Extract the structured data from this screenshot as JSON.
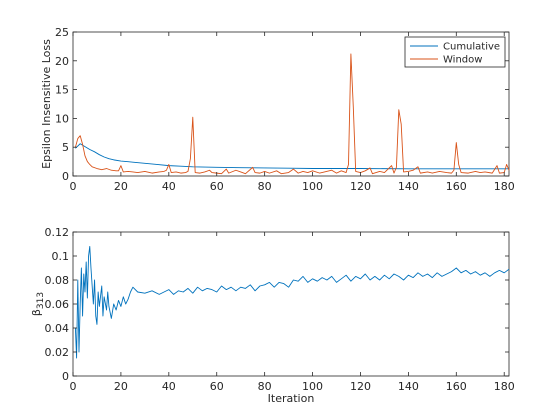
{
  "chart_data": [
    {
      "type": "line",
      "title": "",
      "xlabel": "",
      "ylabel": "Epsilon Insensitive Loss",
      "xlim": [
        0,
        182
      ],
      "ylim": [
        0,
        25
      ],
      "xticks": [
        0,
        20,
        40,
        60,
        80,
        100,
        120,
        140,
        160,
        180
      ],
      "yticks": [
        0,
        5,
        10,
        15,
        20,
        25
      ],
      "grid": false,
      "legend": "top-right",
      "series": [
        {
          "name": "Cumulative",
          "color": "#0072BD",
          "points": [
            [
              1,
              4.8
            ],
            [
              3,
              5.6
            ],
            [
              5,
              5.1
            ],
            [
              7,
              4.6
            ],
            [
              9,
              4.2
            ],
            [
              11,
              3.7
            ],
            [
              13,
              3.3
            ],
            [
              15,
              3.0
            ],
            [
              17,
              2.8
            ],
            [
              20,
              2.6
            ],
            [
              25,
              2.4
            ],
            [
              30,
              2.2
            ],
            [
              35,
              2.0
            ],
            [
              40,
              1.8
            ],
            [
              45,
              1.7
            ],
            [
              50,
              1.6
            ],
            [
              55,
              1.55
            ],
            [
              60,
              1.5
            ],
            [
              70,
              1.45
            ],
            [
              80,
              1.4
            ],
            [
              90,
              1.35
            ],
            [
              100,
              1.3
            ],
            [
              120,
              1.3
            ],
            [
              140,
              1.25
            ],
            [
              160,
              1.25
            ],
            [
              182,
              1.25
            ]
          ]
        },
        {
          "name": "Window",
          "color": "#D95319",
          "points": [
            [
              1,
              5.0
            ],
            [
              2,
              6.5
            ],
            [
              3,
              7.0
            ],
            [
              4,
              5.5
            ],
            [
              5,
              3.5
            ],
            [
              6,
              2.5
            ],
            [
              7,
              2.0
            ],
            [
              8,
              1.6
            ],
            [
              10,
              1.3
            ],
            [
              12,
              1.1
            ],
            [
              14,
              1.3
            ],
            [
              16,
              1.0
            ],
            [
              18,
              0.9
            ],
            [
              19,
              0.9
            ],
            [
              20,
              1.8
            ],
            [
              21,
              0.7
            ],
            [
              23,
              0.8
            ],
            [
              25,
              0.7
            ],
            [
              27,
              0.6
            ],
            [
              30,
              0.8
            ],
            [
              33,
              0.5
            ],
            [
              36,
              0.7
            ],
            [
              38,
              0.8
            ],
            [
              39,
              1.0
            ],
            [
              40,
              2.0
            ],
            [
              41,
              0.6
            ],
            [
              43,
              0.7
            ],
            [
              45,
              0.5
            ],
            [
              47,
              0.6
            ],
            [
              48,
              0.8
            ],
            [
              49,
              3.0
            ],
            [
              50,
              10.2
            ],
            [
              51,
              0.6
            ],
            [
              53,
              0.5
            ],
            [
              55,
              0.7
            ],
            [
              57,
              1.0
            ],
            [
              58,
              0.6
            ],
            [
              60,
              0.5
            ],
            [
              62,
              0.4
            ],
            [
              64,
              1.2
            ],
            [
              65,
              0.5
            ],
            [
              68,
              1.0
            ],
            [
              70,
              0.7
            ],
            [
              72,
              0.4
            ],
            [
              75,
              1.5
            ],
            [
              76,
              0.6
            ],
            [
              78,
              0.5
            ],
            [
              80,
              0.8
            ],
            [
              82,
              0.5
            ],
            [
              85,
              0.9
            ],
            [
              87,
              0.4
            ],
            [
              90,
              0.6
            ],
            [
              92,
              1.2
            ],
            [
              94,
              0.5
            ],
            [
              96,
              0.8
            ],
            [
              98,
              0.6
            ],
            [
              100,
              0.9
            ],
            [
              103,
              0.5
            ],
            [
              105,
              0.7
            ],
            [
              108,
              1.0
            ],
            [
              110,
              0.5
            ],
            [
              112,
              0.9
            ],
            [
              114,
              0.6
            ],
            [
              115,
              2.0
            ],
            [
              116,
              21.2
            ],
            [
              117,
              12.0
            ],
            [
              118,
              0.8
            ],
            [
              120,
              0.6
            ],
            [
              122,
              0.9
            ],
            [
              124,
              1.4
            ],
            [
              125,
              0.4
            ],
            [
              128,
              0.8
            ],
            [
              130,
              0.6
            ],
            [
              133,
              1.8
            ],
            [
              134,
              0.5
            ],
            [
              135,
              1.5
            ],
            [
              136,
              11.5
            ],
            [
              137,
              9.0
            ],
            [
              138,
              0.7
            ],
            [
              140,
              0.8
            ],
            [
              142,
              1.0
            ],
            [
              144,
              1.6
            ],
            [
              145,
              0.5
            ],
            [
              148,
              0.7
            ],
            [
              150,
              0.5
            ],
            [
              153,
              0.8
            ],
            [
              156,
              0.6
            ],
            [
              158,
              0.5
            ],
            [
              159,
              1.0
            ],
            [
              160,
              5.8
            ],
            [
              161,
              2.0
            ],
            [
              162,
              0.6
            ],
            [
              165,
              0.5
            ],
            [
              168,
              0.8
            ],
            [
              170,
              0.6
            ],
            [
              172,
              0.7
            ],
            [
              175,
              0.5
            ],
            [
              177,
              1.8
            ],
            [
              178,
              0.5
            ],
            [
              180,
              0.6
            ],
            [
              181,
              2.0
            ],
            [
              182,
              1.0
            ]
          ]
        }
      ]
    },
    {
      "type": "line",
      "title": "",
      "xlabel": "Iteration",
      "ylabel": "β313",
      "ylabel_symbol": "β",
      "ylabel_subscript": "313",
      "xlim": [
        0,
        182
      ],
      "ylim": [
        0,
        0.12
      ],
      "xticks": [
        0,
        20,
        40,
        60,
        80,
        100,
        120,
        140,
        160,
        180
      ],
      "yticks": [
        0,
        0.02,
        0.04,
        0.06,
        0.08,
        0.1,
        0.12
      ],
      "ytick_labels": [
        "0",
        "0.02",
        "0.04",
        "0.06",
        "0.08",
        "0.1",
        "0.12"
      ],
      "grid": false,
      "series": [
        {
          "name": "",
          "color": "#0072BD",
          "points": [
            [
              1,
              0.04
            ],
            [
              1.5,
              0.015
            ],
            [
              2,
              0.08
            ],
            [
              2.5,
              0.02
            ],
            [
              3,
              0.06
            ],
            [
              3.5,
              0.09
            ],
            [
              4,
              0.05
            ],
            [
              4.5,
              0.085
            ],
            [
              5,
              0.07
            ],
            [
              5.5,
              0.095
            ],
            [
              6,
              0.065
            ],
            [
              6.5,
              0.1
            ],
            [
              7,
              0.108
            ],
            [
              7.5,
              0.09
            ],
            [
              8,
              0.075
            ],
            [
              8.5,
              0.06
            ],
            [
              9,
              0.08
            ],
            [
              9.5,
              0.05
            ],
            [
              10,
              0.043
            ],
            [
              10.5,
              0.07
            ],
            [
              11,
              0.058
            ],
            [
              12,
              0.075
            ],
            [
              12.5,
              0.05
            ],
            [
              13,
              0.066
            ],
            [
              14,
              0.055
            ],
            [
              14.5,
              0.07
            ],
            [
              15,
              0.058
            ],
            [
              16,
              0.048
            ],
            [
              17,
              0.06
            ],
            [
              18,
              0.055
            ],
            [
              19,
              0.063
            ],
            [
              20,
              0.058
            ],
            [
              21,
              0.066
            ],
            [
              22,
              0.06
            ],
            [
              23,
              0.064
            ],
            [
              24,
              0.07
            ],
            [
              25,
              0.074
            ],
            [
              27,
              0.07
            ],
            [
              30,
              0.069
            ],
            [
              33,
              0.071
            ],
            [
              36,
              0.068
            ],
            [
              38,
              0.07
            ],
            [
              40,
              0.072
            ],
            [
              42,
              0.068
            ],
            [
              44,
              0.071
            ],
            [
              46,
              0.07
            ],
            [
              48,
              0.073
            ],
            [
              50,
              0.069
            ],
            [
              52,
              0.074
            ],
            [
              54,
              0.071
            ],
            [
              56,
              0.073
            ],
            [
              58,
              0.072
            ],
            [
              60,
              0.07
            ],
            [
              62,
              0.075
            ],
            [
              64,
              0.072
            ],
            [
              66,
              0.074
            ],
            [
              68,
              0.071
            ],
            [
              70,
              0.074
            ],
            [
              72,
              0.073
            ],
            [
              74,
              0.076
            ],
            [
              76,
              0.071
            ],
            [
              78,
              0.075
            ],
            [
              80,
              0.076
            ],
            [
              82,
              0.078
            ],
            [
              84,
              0.074
            ],
            [
              86,
              0.078
            ],
            [
              88,
              0.077
            ],
            [
              90,
              0.074
            ],
            [
              92,
              0.08
            ],
            [
              94,
              0.079
            ],
            [
              96,
              0.083
            ],
            [
              98,
              0.078
            ],
            [
              100,
              0.081
            ],
            [
              102,
              0.079
            ],
            [
              104,
              0.082
            ],
            [
              106,
              0.08
            ],
            [
              108,
              0.083
            ],
            [
              110,
              0.078
            ],
            [
              112,
              0.081
            ],
            [
              114,
              0.084
            ],
            [
              116,
              0.079
            ],
            [
              118,
              0.083
            ],
            [
              120,
              0.081
            ],
            [
              122,
              0.085
            ],
            [
              124,
              0.08
            ],
            [
              126,
              0.083
            ],
            [
              128,
              0.08
            ],
            [
              130,
              0.084
            ],
            [
              132,
              0.081
            ],
            [
              134,
              0.085
            ],
            [
              136,
              0.083
            ],
            [
              138,
              0.08
            ],
            [
              140,
              0.084
            ],
            [
              142,
              0.082
            ],
            [
              144,
              0.086
            ],
            [
              146,
              0.083
            ],
            [
              148,
              0.085
            ],
            [
              150,
              0.082
            ],
            [
              152,
              0.086
            ],
            [
              154,
              0.083
            ],
            [
              156,
              0.085
            ],
            [
              158,
              0.087
            ],
            [
              160,
              0.09
            ],
            [
              162,
              0.086
            ],
            [
              164,
              0.088
            ],
            [
              166,
              0.085
            ],
            [
              168,
              0.087
            ],
            [
              170,
              0.084
            ],
            [
              172,
              0.086
            ],
            [
              174,
              0.083
            ],
            [
              176,
              0.086
            ],
            [
              178,
              0.088
            ],
            [
              180,
              0.086
            ],
            [
              182,
              0.089
            ]
          ]
        }
      ]
    }
  ]
}
